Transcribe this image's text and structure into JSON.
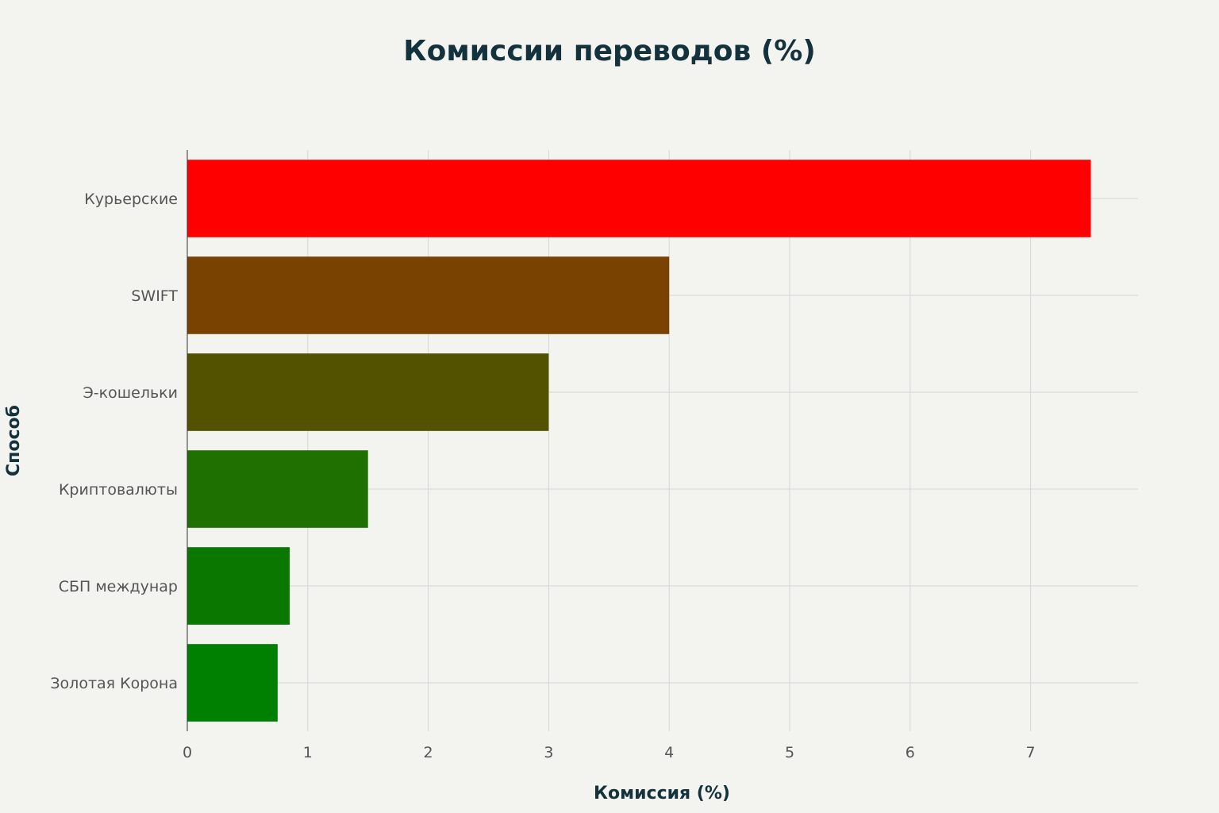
{
  "chart_data": {
    "type": "bar",
    "orientation": "horizontal",
    "title": "Комиссии переводов (%)",
    "xlabel": "Комиссия (%)",
    "ylabel": "Способ",
    "categories": [
      "Курьерские",
      "SWIFT",
      "Э-кошельки",
      "Криптовалюты",
      "СБП междунар",
      "Золотая Корона"
    ],
    "values": [
      7.5,
      4.0,
      3.0,
      1.5,
      0.85,
      0.75
    ],
    "colors": [
      "#ff0000",
      "#7a4200",
      "#525200",
      "#1e7000",
      "#0a7800",
      "#008000"
    ],
    "xlim": [
      0,
      7.9
    ],
    "xticks": [
      0,
      1,
      2,
      3,
      4,
      5,
      6,
      7
    ],
    "grid": true,
    "legend": "none"
  }
}
